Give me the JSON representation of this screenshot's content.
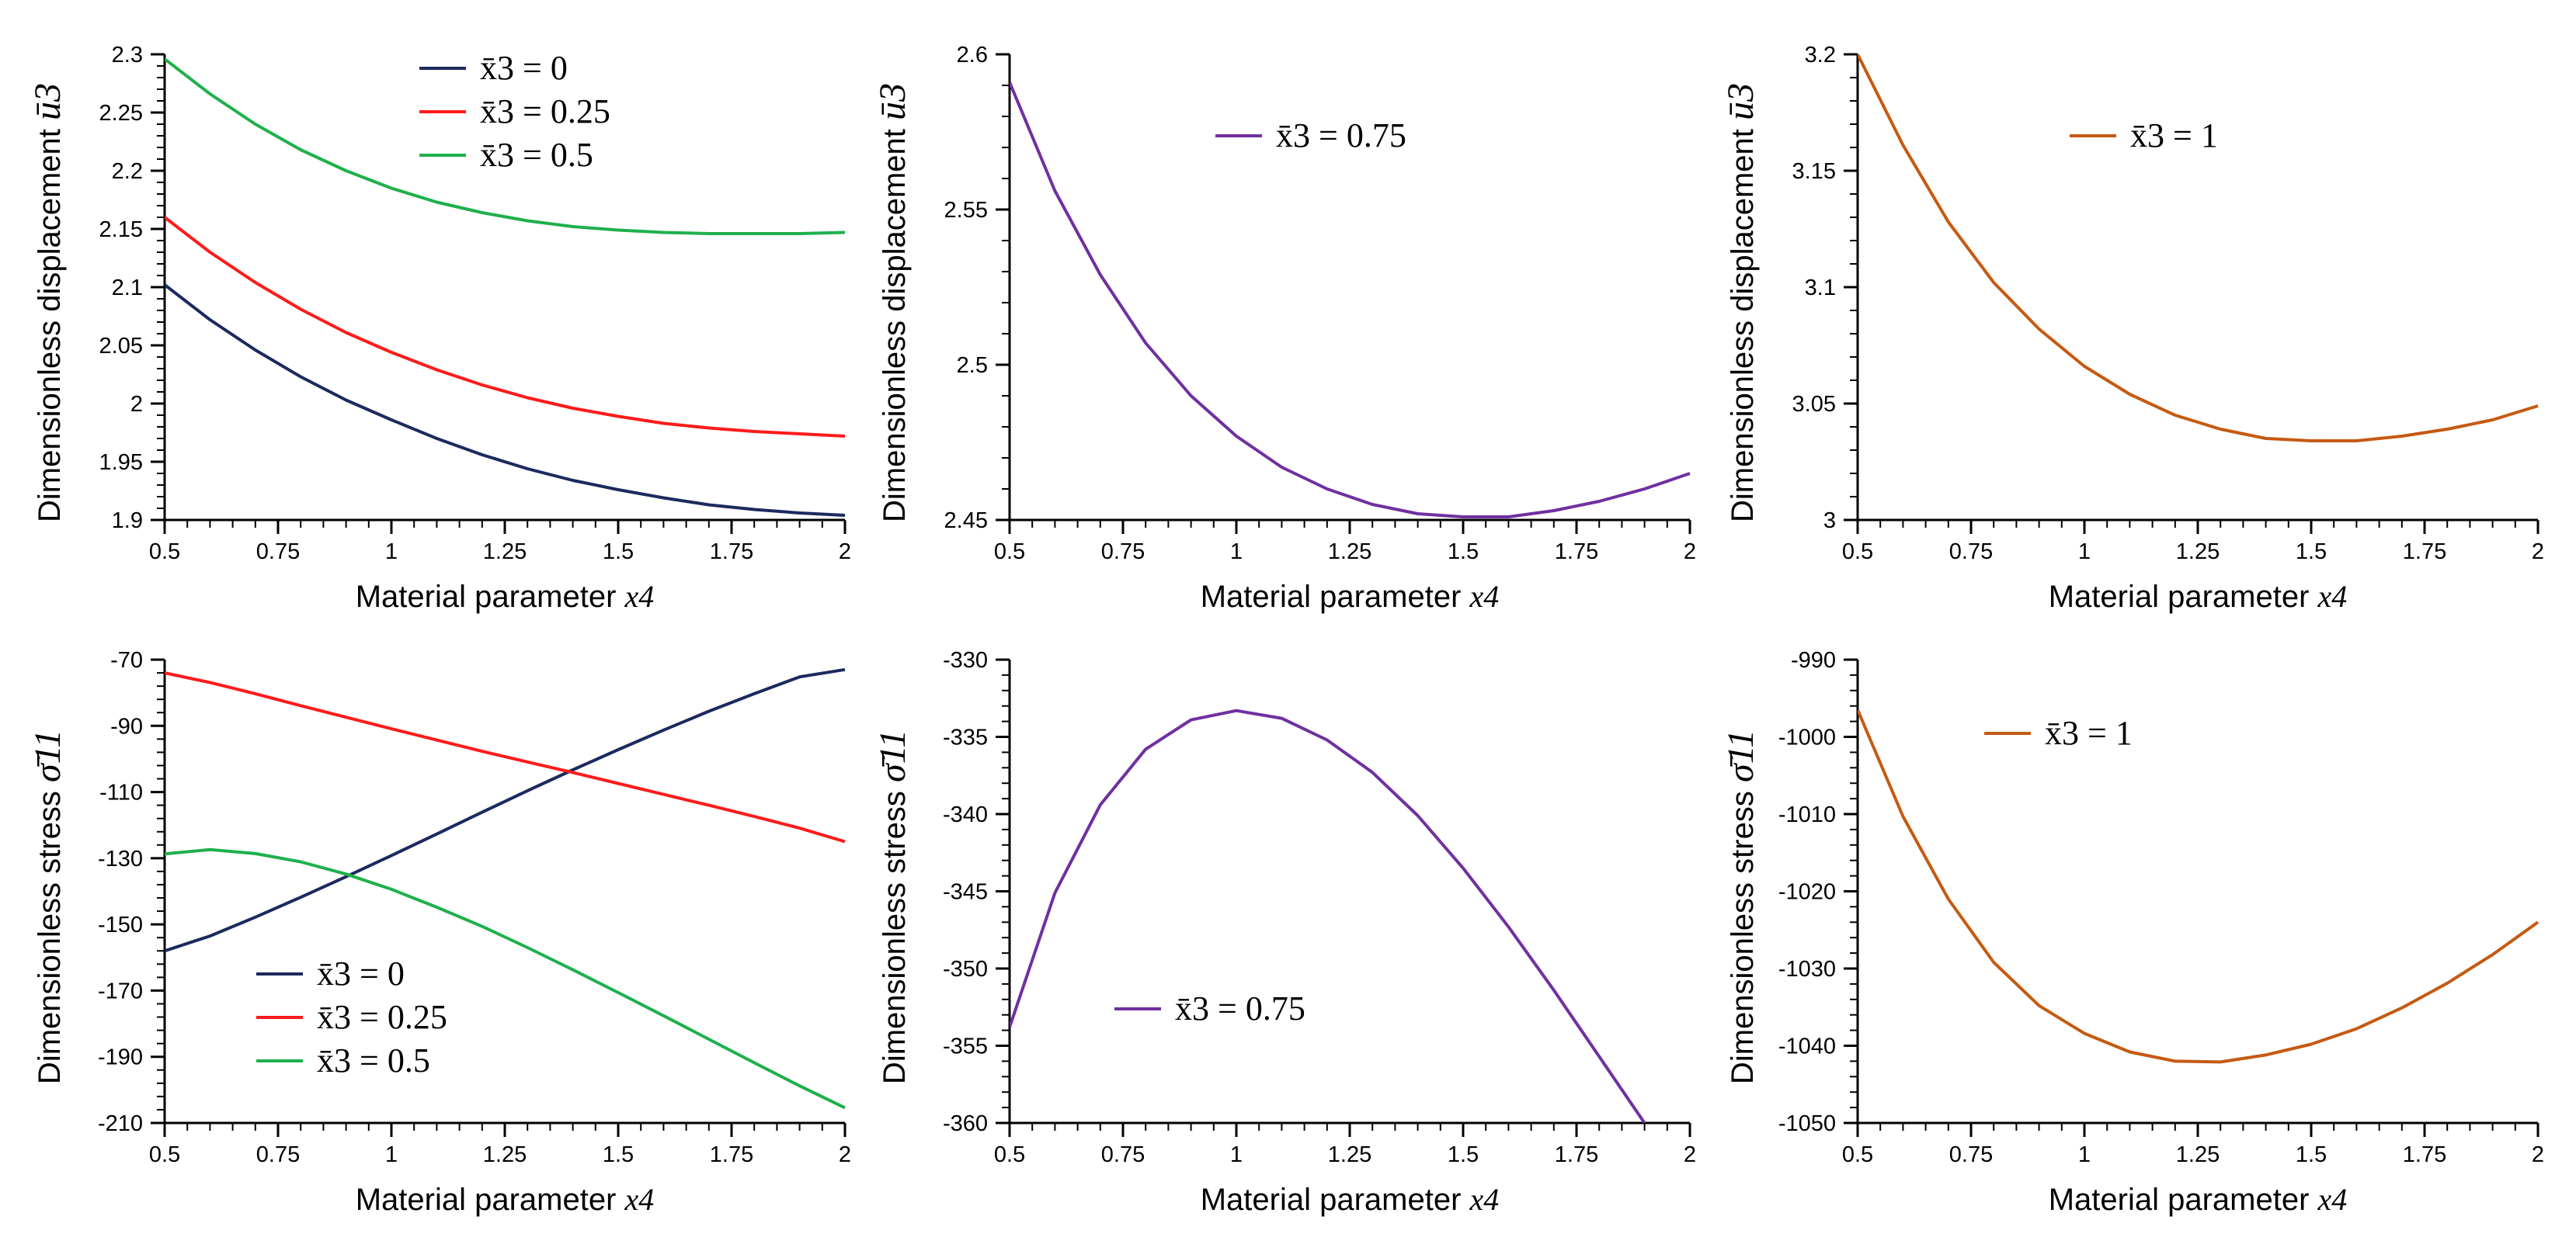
{
  "figure": {
    "colors": {
      "navy": "#1b2a5e",
      "red": "#ff1a1a",
      "green": "#1fb04c",
      "purple": "#7030a0",
      "orange": "#c55a11"
    }
  },
  "chart_data": [
    {
      "type": "line",
      "title": "",
      "xlabel": "Material parameter",
      "xlabel_var": "x4",
      "ylabel": "Dimensionless displacement",
      "ylabel_symbol": "ū3",
      "xlim": [
        0.5,
        2
      ],
      "ylim": [
        1.9,
        2.3
      ],
      "xticks": [
        "0.5",
        "0.75",
        "1",
        "1.25",
        "1.5",
        "1.75",
        "2"
      ],
      "yticks": [
        "1.9",
        "1.95",
        "2",
        "2.05",
        "2.1",
        "2.15",
        "2.2",
        "2.25",
        "2.3"
      ],
      "legend_position": "top-center",
      "x": [
        0.5,
        0.6,
        0.7,
        0.8,
        0.9,
        1.0,
        1.1,
        1.2,
        1.3,
        1.4,
        1.5,
        1.6,
        1.7,
        1.8,
        1.9,
        2.0
      ],
      "series": [
        {
          "name": "x̄3 = 0",
          "color": "navy",
          "values": [
            2.102,
            2.072,
            2.046,
            2.023,
            2.003,
            1.986,
            1.97,
            1.956,
            1.944,
            1.934,
            1.926,
            1.919,
            1.913,
            1.909,
            1.906,
            1.904
          ]
        },
        {
          "name": "x̄3 = 0.25",
          "color": "red",
          "values": [
            2.16,
            2.13,
            2.104,
            2.081,
            2.061,
            2.044,
            2.029,
            2.016,
            2.005,
            1.996,
            1.989,
            1.983,
            1.979,
            1.976,
            1.974,
            1.972
          ]
        },
        {
          "name": "x̄3 = 0.5",
          "color": "green",
          "values": [
            2.296,
            2.266,
            2.24,
            2.218,
            2.2,
            2.185,
            2.173,
            2.164,
            2.157,
            2.152,
            2.149,
            2.147,
            2.146,
            2.146,
            2.146,
            2.147
          ]
        }
      ]
    },
    {
      "type": "line",
      "title": "",
      "xlabel": "Material parameter",
      "xlabel_var": "x4",
      "ylabel": "Dimensionless displacement",
      "ylabel_symbol": "ū3",
      "xlim": [
        0.5,
        2
      ],
      "ylim": [
        2.45,
        2.6
      ],
      "xticks": [
        "0.5",
        "0.75",
        "1",
        "1.25",
        "1.5",
        "1.75",
        "2"
      ],
      "yticks": [
        "2.45",
        "2.5",
        "2.55",
        "2.6"
      ],
      "legend_position": "top-center",
      "x": [
        0.5,
        0.6,
        0.7,
        0.8,
        0.9,
        1.0,
        1.1,
        1.2,
        1.3,
        1.4,
        1.5,
        1.6,
        1.7,
        1.8,
        1.9,
        2.0
      ],
      "series": [
        {
          "name": "x̄3 = 0.75",
          "color": "purple",
          "values": [
            2.591,
            2.556,
            2.529,
            2.507,
            2.49,
            2.477,
            2.467,
            2.46,
            2.455,
            2.452,
            2.451,
            2.451,
            2.453,
            2.456,
            2.46,
            2.465
          ]
        }
      ]
    },
    {
      "type": "line",
      "title": "",
      "xlabel": "Material parameter",
      "xlabel_var": "x4",
      "ylabel": "Dimensionless displacement",
      "ylabel_symbol": "ū3",
      "xlim": [
        0.5,
        2
      ],
      "ylim": [
        3.0,
        3.2
      ],
      "xticks": [
        "0.5",
        "0.75",
        "1",
        "1.25",
        "1.5",
        "1.75",
        "2"
      ],
      "yticks": [
        "3",
        "3.05",
        "3.1",
        "3.15",
        "3.2"
      ],
      "legend_position": "top-center",
      "x": [
        0.5,
        0.6,
        0.7,
        0.8,
        0.9,
        1.0,
        1.1,
        1.2,
        1.3,
        1.4,
        1.5,
        1.6,
        1.7,
        1.8,
        1.9,
        2.0
      ],
      "series": [
        {
          "name": "x̄3 = 1",
          "color": "orange",
          "values": [
            3.2,
            3.161,
            3.128,
            3.102,
            3.082,
            3.066,
            3.054,
            3.045,
            3.039,
            3.035,
            3.034,
            3.034,
            3.036,
            3.039,
            3.043,
            3.049
          ]
        }
      ]
    },
    {
      "type": "line",
      "title": "",
      "xlabel": "Material parameter",
      "xlabel_var": "x4",
      "ylabel": "Dimensionless stress",
      "ylabel_symbol": "σ̄11",
      "xlim": [
        0.5,
        2
      ],
      "ylim": [
        -210,
        -70
      ],
      "xticks": [
        "0.5",
        "0.75",
        "1",
        "1.25",
        "1.5",
        "1.75",
        "2"
      ],
      "yticks": [
        "-210",
        "-190",
        "-170",
        "-150",
        "-130",
        "-110",
        "-90",
        "-70"
      ],
      "legend_position": "bottom-left",
      "x": [
        0.5,
        0.6,
        0.7,
        0.8,
        0.9,
        1.0,
        1.1,
        1.2,
        1.3,
        1.4,
        1.5,
        1.6,
        1.7,
        1.8,
        1.9,
        2.0
      ],
      "series": [
        {
          "name": "x̄3 = 0",
          "color": "navy",
          "values": [
            -158.0,
            -153.5,
            -147.8,
            -141.8,
            -135.6,
            -129.2,
            -122.7,
            -116.1,
            -109.6,
            -103.3,
            -97.2,
            -91.3,
            -85.6,
            -80.3,
            -75.2,
            -73.0
          ]
        },
        {
          "name": "x̄3 = 0.25",
          "color": "red",
          "values": [
            -74.0,
            -76.9,
            -80.3,
            -83.9,
            -87.4,
            -90.9,
            -94.3,
            -97.7,
            -100.9,
            -104.1,
            -107.4,
            -110.7,
            -114.0,
            -117.4,
            -120.9,
            -125.0
          ]
        },
        {
          "name": "x̄3 = 0.5",
          "color": "green",
          "values": [
            -128.7,
            -127.4,
            -128.6,
            -131.1,
            -134.8,
            -139.4,
            -144.8,
            -150.6,
            -157.0,
            -163.7,
            -170.6,
            -177.6,
            -184.7,
            -191.8,
            -198.8,
            -205.4
          ]
        }
      ]
    },
    {
      "type": "line",
      "title": "",
      "xlabel": "Material parameter",
      "xlabel_var": "x4",
      "ylabel": "Dimensionless stress",
      "ylabel_symbol": "σ̄11",
      "xlim": [
        0.5,
        2
      ],
      "ylim": [
        -360,
        -330
      ],
      "xticks": [
        "0.5",
        "0.75",
        "1",
        "1.25",
        "1.5",
        "1.75",
        "2"
      ],
      "yticks": [
        "-360",
        "-355",
        "-350",
        "-345",
        "-340",
        "-335",
        "-330"
      ],
      "legend_position": "bottom-left",
      "x": [
        0.5,
        0.6,
        0.7,
        0.8,
        0.9,
        1.0,
        1.1,
        1.2,
        1.3,
        1.4,
        1.5,
        1.6,
        1.7,
        1.8,
        1.9
      ],
      "series": [
        {
          "name": "x̄3 = 0.75",
          "color": "purple",
          "values": [
            -353.8,
            -345.1,
            -339.4,
            -335.8,
            -333.9,
            -333.3,
            -333.8,
            -335.2,
            -337.3,
            -340.1,
            -343.5,
            -347.3,
            -351.4,
            -355.7,
            -360.0
          ]
        }
      ]
    },
    {
      "type": "line",
      "title": "",
      "xlabel": "Material parameter",
      "xlabel_var": "x4",
      "ylabel": "Dimensionless stress",
      "ylabel_symbol": "σ̄11",
      "xlim": [
        0.5,
        2
      ],
      "ylim": [
        -1050,
        -990
      ],
      "xticks": [
        "0.5",
        "0.75",
        "1",
        "1.25",
        "1.5",
        "1.75",
        "2"
      ],
      "yticks": [
        "-1050",
        "-1040",
        "-1030",
        "-1020",
        "-1010",
        "-1000",
        "-990"
      ],
      "legend_position": "top-center",
      "x": [
        0.5,
        0.6,
        0.7,
        0.8,
        0.9,
        1.0,
        1.1,
        1.2,
        1.3,
        1.4,
        1.5,
        1.6,
        1.7,
        1.8,
        1.9,
        2.0
      ],
      "series": [
        {
          "name": "x̄3 = 1",
          "color": "orange",
          "values": [
            -996.5,
            -1010.3,
            -1021.0,
            -1029.2,
            -1034.8,
            -1038.4,
            -1040.8,
            -1042.0,
            -1042.1,
            -1041.2,
            -1039.8,
            -1037.8,
            -1035.1,
            -1031.9,
            -1028.2,
            -1024.0
          ]
        }
      ]
    }
  ]
}
